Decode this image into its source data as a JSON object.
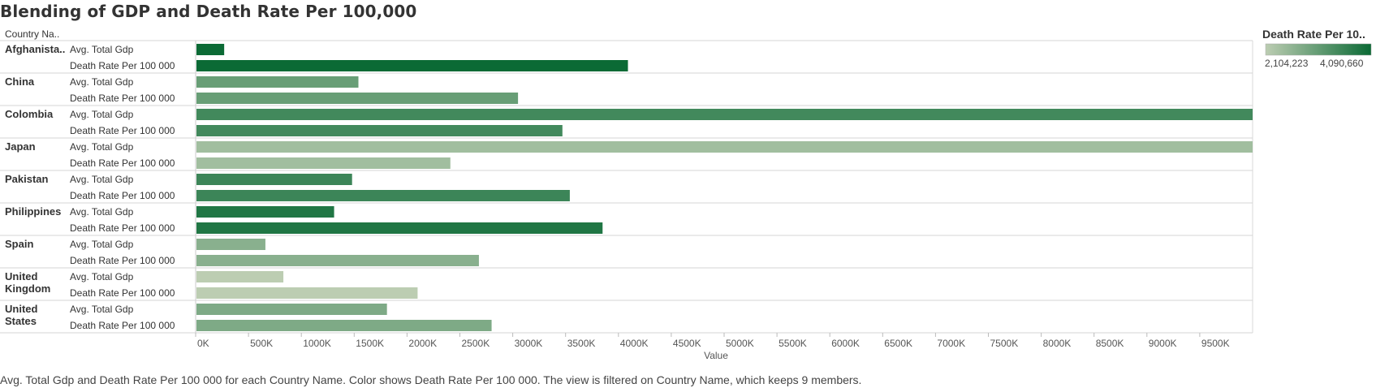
{
  "title": "Blending of GDP and Death Rate Per 100,000",
  "caption": "Avg. Total Gdp and Death Rate Per 100 000 for each Country Name.  Color shows Death Rate Per 100 000. The view is filtered on Country Name, which keeps 9 members.",
  "row_header": "Country Na..",
  "legend": {
    "title": "Death Rate Per 10..",
    "min_label": "2,104,223",
    "max_label": "4,090,660",
    "color_min": "#bccdb2",
    "color_max": "#0b6a35"
  },
  "chart_data": {
    "type": "bar",
    "orientation": "horizontal",
    "xlabel": "Value",
    "xlim": [
      0,
      10000
    ],
    "x_unit": "K",
    "ticks": [
      "0K",
      "500K",
      "1000K",
      "1500K",
      "2000K",
      "2500K",
      "3000K",
      "3500K",
      "4000K",
      "4500K",
      "5000K",
      "5500K",
      "6000K",
      "6500K",
      "7000K",
      "7500K",
      "8000K",
      "8500K",
      "9000K",
      "9500K"
    ],
    "measure_labels": [
      "Avg. Total Gdp",
      "Death Rate Per 100 000"
    ],
    "countries": [
      {
        "name": "Afghanista..",
        "gdp": 270,
        "death": 4090,
        "death_rate": 4090660
      },
      {
        "name": "China",
        "gdp": 1540,
        "death": 3050,
        "death_rate": 3050000
      },
      {
        "name": "Colombia",
        "gdp": 10000,
        "death": 3470,
        "death_rate": 3470000
      },
      {
        "name": "Japan",
        "gdp": 10000,
        "death": 2410,
        "death_rate": 2410000
      },
      {
        "name": "Pakistan",
        "gdp": 1480,
        "death": 3540,
        "death_rate": 3540000
      },
      {
        "name": "Philippines",
        "gdp": 1310,
        "death": 3850,
        "death_rate": 3850000
      },
      {
        "name": "Spain",
        "gdp": 660,
        "death": 2680,
        "death_rate": 2680000
      },
      {
        "name": "United Kingdom",
        "gdp": 830,
        "death": 2100,
        "death_rate": 2104223
      },
      {
        "name": "United States",
        "gdp": 1810,
        "death": 2800,
        "death_rate": 2800000
      }
    ]
  }
}
